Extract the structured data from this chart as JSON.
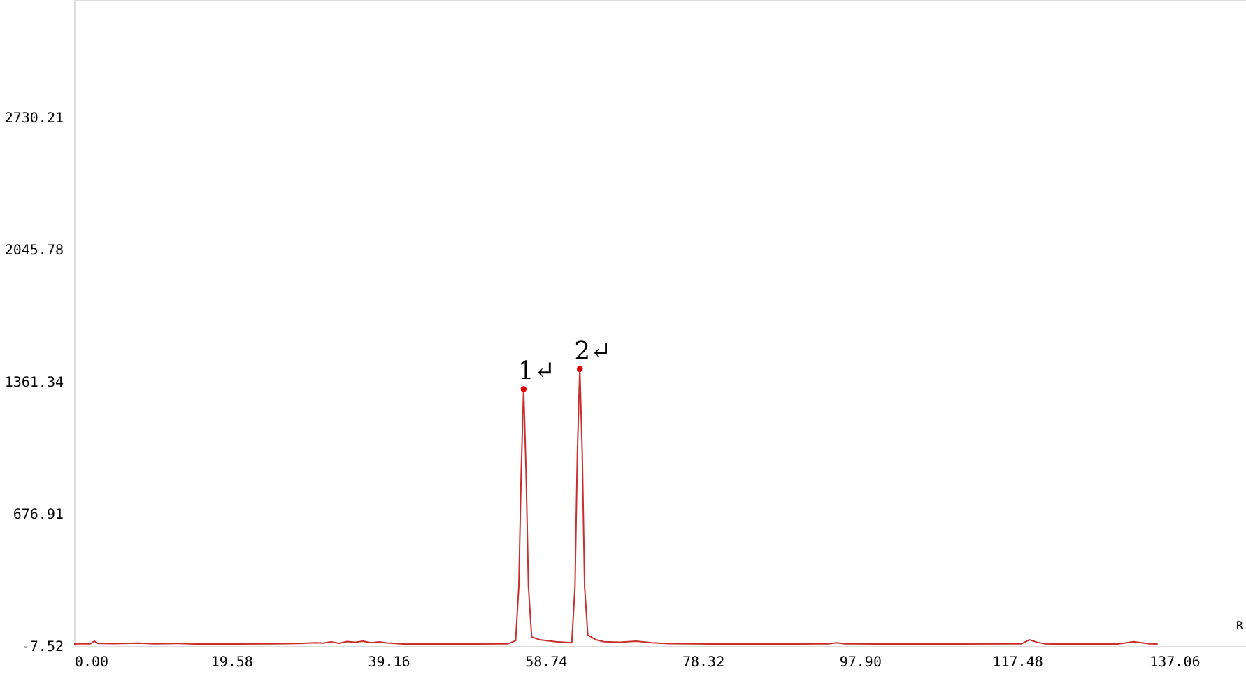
{
  "chart_data": {
    "type": "line",
    "x": [
      0,
      1,
      2,
      2.5,
      3,
      5,
      8,
      10,
      13,
      15,
      20,
      25,
      28,
      30,
      31,
      32,
      33,
      34,
      35,
      36,
      37,
      38,
      39,
      40,
      41,
      45,
      50,
      54,
      55,
      55.4,
      55.7,
      56,
      56.3,
      56.6,
      57,
      58,
      60,
      62,
      62.4,
      62.7,
      63,
      63.3,
      63.6,
      64,
      65,
      66,
      68,
      70,
      72,
      74,
      80,
      90,
      94,
      95,
      96,
      100,
      110,
      118,
      119,
      120,
      121,
      122,
      125,
      130,
      132,
      133,
      134,
      135
    ],
    "series": [
      {
        "color": "#c83030",
        "values": [
          3,
          5,
          4,
          18,
          6,
          5,
          8,
          4,
          6,
          3,
          3,
          4,
          6,
          10,
          8,
          14,
          7,
          16,
          12,
          18,
          10,
          14,
          9,
          6,
          3,
          3,
          3,
          4,
          20,
          300,
          900,
          1324,
          900,
          300,
          40,
          25,
          15,
          10,
          300,
          1000,
          1428,
          1000,
          300,
          50,
          25,
          15,
          12,
          18,
          10,
          5,
          3,
          3,
          4,
          10,
          4,
          3,
          3,
          4,
          25,
          12,
          4,
          3,
          3,
          3,
          15,
          10,
          4,
          3
        ]
      },
      {
        "type": "scatter",
        "marker": "circle",
        "x": [
          56,
          63
        ],
        "color": "#e00000",
        "values": [
          1324,
          1428
        ]
      }
    ],
    "annotations": [
      {
        "text": "1↵",
        "x": 56,
        "y": 1324
      },
      {
        "text": "2↵",
        "x": 63,
        "y": 1428
      },
      "R"
    ],
    "xlim": [
      0,
      146
    ],
    "ylim": [
      -7.52,
      3340
    ],
    "xticks": [
      {
        "value": 0,
        "label": "0.00"
      },
      {
        "value": 19.58,
        "label": "19.58"
      },
      {
        "value": 39.16,
        "label": "39.16"
      },
      {
        "value": 58.74,
        "label": "58.74"
      },
      {
        "value": 78.32,
        "label": "78.32"
      },
      {
        "value": 97.9,
        "label": "97.90"
      },
      {
        "value": 117.48,
        "label": "117.48"
      },
      {
        "value": 137.06,
        "label": "137.06"
      }
    ],
    "yticks": [
      {
        "value": -7.52,
        "label": "-7.52"
      },
      {
        "value": 676.91,
        "label": "676.91"
      },
      {
        "value": 1361.34,
        "label": "1361.34"
      },
      {
        "value": 2045.78,
        "label": "2045.78"
      },
      {
        "value": 2730.21,
        "label": "2730.21"
      }
    ],
    "grid": false,
    "line_style": "solid"
  }
}
